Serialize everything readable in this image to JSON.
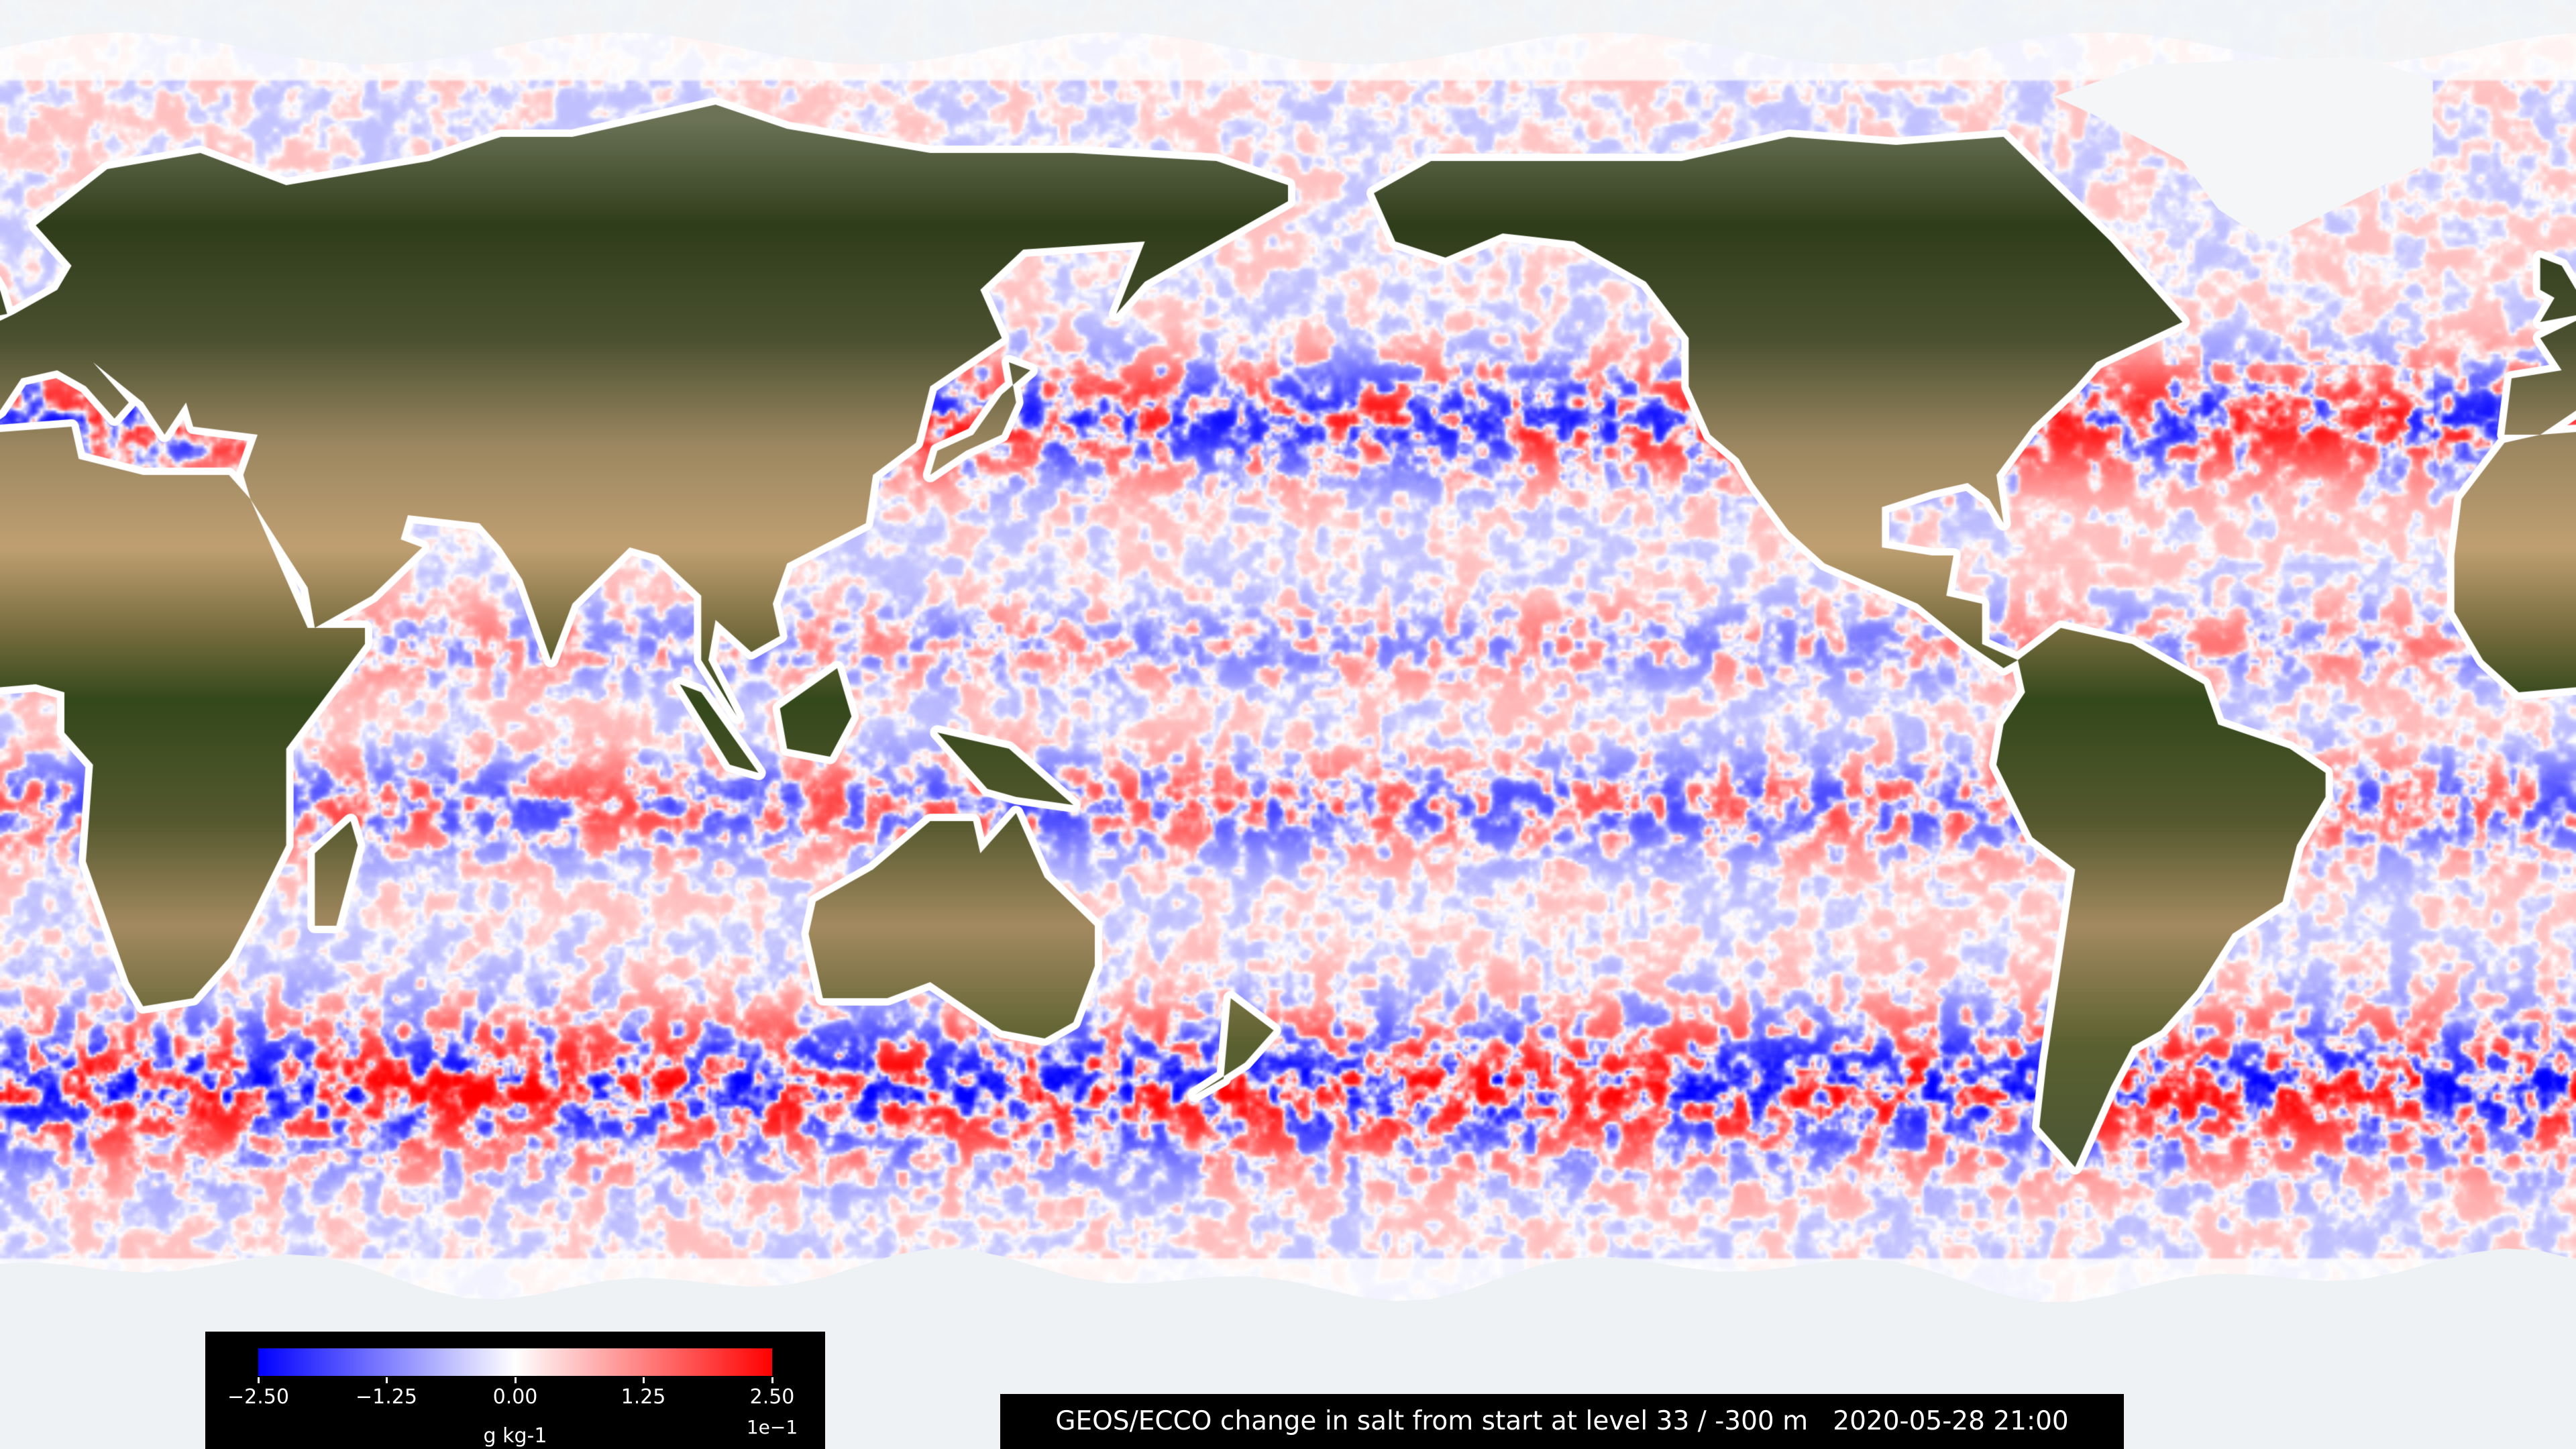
{
  "title": "GEOS/ECCO change in salt from start at level 33 / -300 m   2020-05-28 21:00",
  "colorbar": {
    "colormap": "bwr",
    "range": [
      -0.25,
      0.25
    ],
    "ticks": [
      "−2.50",
      "−1.25",
      "0.00",
      "1.25",
      "2.50"
    ],
    "multiplier": "1e−1",
    "unit": "g kg-1",
    "colors": {
      "min": "#0000ff",
      "mid": "#ffffff",
      "max": "#ff0000"
    }
  },
  "map": {
    "projection": "equirectangular",
    "central_longitude": 180,
    "land_style": "satellite imagery",
    "ice_color": "#eef2f5"
  }
}
